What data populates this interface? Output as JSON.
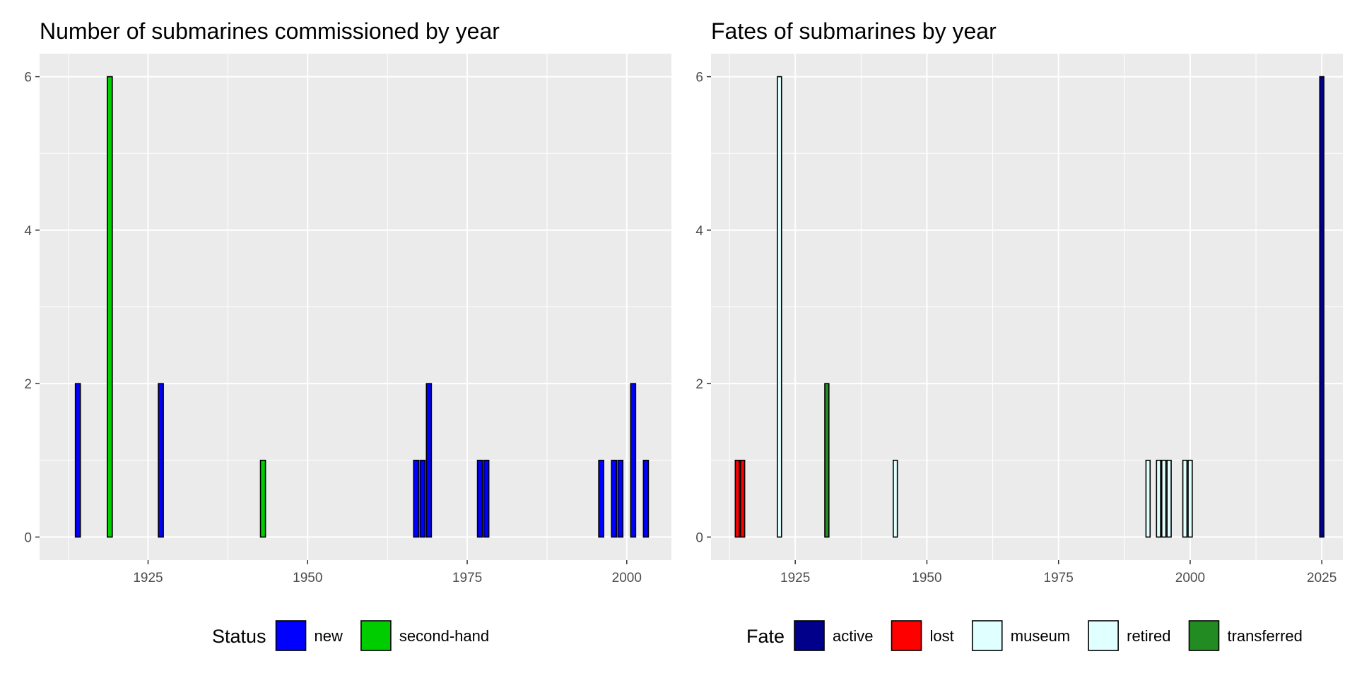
{
  "chart_data": [
    {
      "type": "bar",
      "title": "Number of submarines commissioned by year",
      "xlabel": "",
      "ylabel": "",
      "xlim": [
        1908,
        2007
      ],
      "ylim": [
        -0.3,
        6.3
      ],
      "x_ticks": [
        1925,
        1950,
        1975,
        2000
      ],
      "y_ticks": [
        0,
        2,
        4,
        6
      ],
      "grid": true,
      "legend_position": "bottom",
      "legend": {
        "title": "Status",
        "entries": [
          {
            "key": "new",
            "label": "new",
            "color": "#0000FF"
          },
          {
            "key": "second-hand",
            "label": "second-hand",
            "color": "#00CD00"
          }
        ]
      },
      "bars": [
        {
          "x": 1914,
          "value": 2,
          "group": "new"
        },
        {
          "x": 1919,
          "value": 6,
          "group": "second-hand"
        },
        {
          "x": 1927,
          "value": 2,
          "group": "new"
        },
        {
          "x": 1943,
          "value": 1,
          "group": "second-hand"
        },
        {
          "x": 1967,
          "value": 1,
          "group": "new"
        },
        {
          "x": 1968,
          "value": 1,
          "group": "new"
        },
        {
          "x": 1969,
          "value": 2,
          "group": "new"
        },
        {
          "x": 1977,
          "value": 1,
          "group": "new"
        },
        {
          "x": 1978,
          "value": 1,
          "group": "new"
        },
        {
          "x": 1996,
          "value": 1,
          "group": "new"
        },
        {
          "x": 1998,
          "value": 1,
          "group": "new"
        },
        {
          "x": 1999,
          "value": 1,
          "group": "new"
        },
        {
          "x": 2001,
          "value": 2,
          "group": "new"
        },
        {
          "x": 2003,
          "value": 1,
          "group": "new"
        }
      ]
    },
    {
      "type": "bar",
      "title": "Fates of submarines by year",
      "xlabel": "",
      "ylabel": "",
      "xlim": [
        1909,
        2029
      ],
      "ylim": [
        -0.3,
        6.3
      ],
      "x_ticks": [
        1925,
        1950,
        1975,
        2000,
        2025
      ],
      "y_ticks": [
        0,
        2,
        4,
        6
      ],
      "grid": true,
      "legend_position": "bottom",
      "legend": {
        "title": "Fate",
        "entries": [
          {
            "key": "active",
            "label": "active",
            "color": "#00008B"
          },
          {
            "key": "lost",
            "label": "lost",
            "color": "#FF0000"
          },
          {
            "key": "museum",
            "label": "museum",
            "color": "#E0FFFF"
          },
          {
            "key": "retired",
            "label": "retired",
            "color": "#E0FFFF"
          },
          {
            "key": "transferred",
            "label": "transferred",
            "color": "#228B22"
          }
        ]
      },
      "bars": [
        {
          "x": 1914,
          "value": 1,
          "group": "lost"
        },
        {
          "x": 1915,
          "value": 1,
          "group": "lost"
        },
        {
          "x": 1922,
          "value": 6,
          "group": "retired"
        },
        {
          "x": 1931,
          "value": 2,
          "group": "transferred"
        },
        {
          "x": 1944,
          "value": 1,
          "group": "retired"
        },
        {
          "x": 1992,
          "value": 1,
          "group": "retired"
        },
        {
          "x": 1994,
          "value": 1,
          "group": "retired"
        },
        {
          "x": 1995,
          "value": 1,
          "group": "museum"
        },
        {
          "x": 1996,
          "value": 1,
          "group": "retired"
        },
        {
          "x": 1999,
          "value": 1,
          "group": "retired"
        },
        {
          "x": 2000,
          "value": 1,
          "group": "retired"
        },
        {
          "x": 2025,
          "value": 6,
          "group": "active"
        }
      ]
    }
  ]
}
